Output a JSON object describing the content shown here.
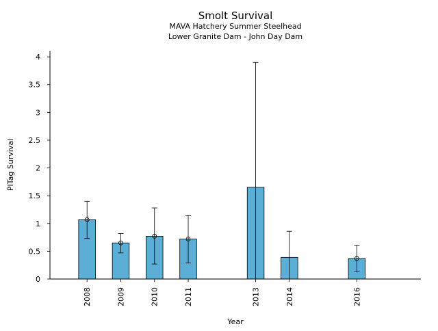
{
  "chart_data": {
    "type": "bar",
    "title": "Smolt Survival",
    "subtitle_lines": [
      "MAVA Hatchery Summer Steelhead",
      "Lower Granite Dam - John Day Dam"
    ],
    "xlabel": "Year",
    "ylabel": "PITag Survival",
    "x": [
      2008,
      2009,
      2010,
      2011,
      2013,
      2014,
      2016
    ],
    "values": [
      1.07,
      0.65,
      0.77,
      0.72,
      1.65,
      0.39,
      0.37
    ],
    "error_low": [
      0.73,
      0.47,
      0.27,
      0.29,
      0.0,
      0.0,
      0.13
    ],
    "error_high": [
      1.4,
      0.82,
      1.28,
      1.14,
      3.9,
      0.86,
      0.61
    ],
    "markers": [
      1.07,
      0.65,
      0.77,
      0.72,
      null,
      null,
      0.37
    ],
    "xlim": [
      2006.9,
      2017.9
    ],
    "ylim": [
      0,
      4.1
    ],
    "yticks": [
      0,
      0.5,
      1,
      1.5,
      2,
      2.5,
      3,
      3.5,
      4
    ],
    "ytick_labels": [
      "0",
      "0.5",
      "1",
      "1.5",
      "2",
      "2.5",
      "3",
      "3.5",
      "4"
    ],
    "bar_color": "#5BAED6",
    "grid": false
  }
}
